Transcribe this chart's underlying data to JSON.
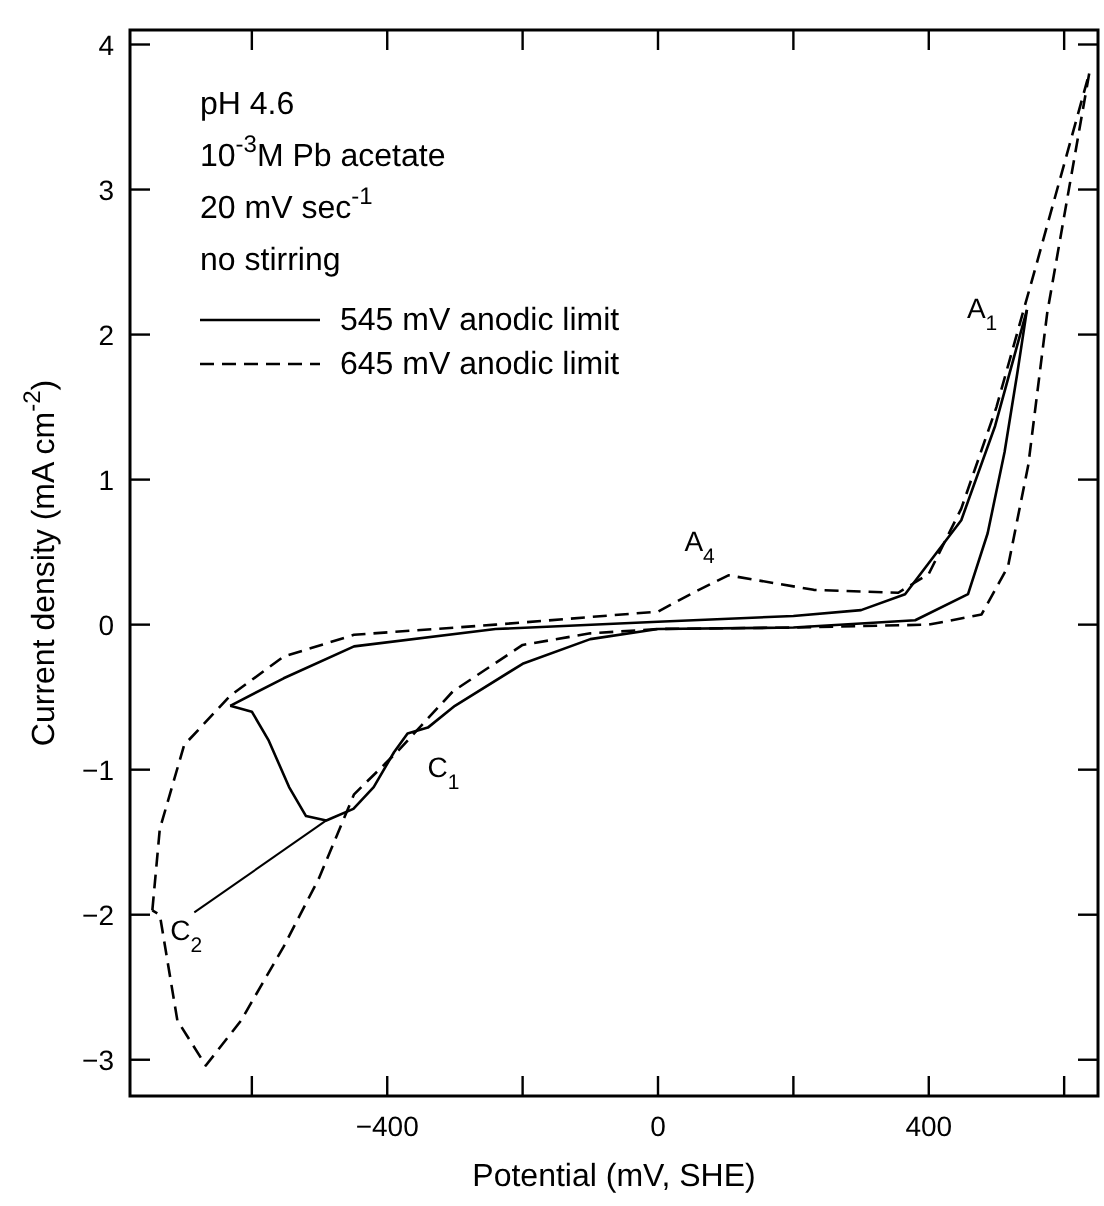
{
  "chart_data": {
    "type": "line",
    "xlabel": "Potential (mV, SHE)",
    "ylabel": "Current density (mA cm$^{-2}$)",
    "xlim": [
      -780,
      650
    ],
    "ylim": [
      -3.25,
      4.1
    ],
    "xticks": [
      {
        "value": -600,
        "label": null
      },
      -400,
      {
        "value": -200,
        "label": null
      },
      0,
      {
        "value": 200,
        "label": null
      },
      400,
      {
        "value": 600,
        "label": null
      }
    ],
    "yticks": [
      -3,
      -2,
      -1,
      0,
      1,
      2,
      3,
      4
    ],
    "grid": false,
    "legend": "top left",
    "marker": "none",
    "annotations": [
      "pH 4.6",
      "10$^{-3}$M Pb acetate",
      "20 mV sec$^{-1}$",
      "no stirring",
      {
        "text": "A$_{1}$",
        "x": 545,
        "y": 2.17
      },
      {
        "text": "A$_{4}$",
        "x": 104,
        "y": 0.34
      },
      {
        "text": "C$_{1}$",
        "x": -370,
        "y": -0.75
      },
      {
        "text": "C$_{2}$",
        "x": -490,
        "y": -1.35
      }
    ],
    "series": [
      {
        "name": "545 mV anodic limit",
        "color": "#000000",
        "line_style": "solid",
        "x": [
          -632,
          -553,
          -449,
          -240,
          0,
          200,
          300,
          365,
          448,
          498,
          545
        ],
        "values": [
          -0.56,
          -0.37,
          -0.15,
          -0.03,
          0.02,
          0.06,
          0.1,
          0.21,
          0.72,
          1.37,
          2.17
        ]
      },
      {
        "name": "645 mV anodic limit",
        "color": "#000000",
        "line_style": "dashed",
        "x": [
          -747,
          -736,
          -700,
          -632,
          -553,
          -449,
          -240,
          0,
          52,
          104,
          230,
          355,
          400,
          448,
          500,
          560,
          637
        ],
        "values": [
          -1.97,
          -1.41,
          -0.83,
          -0.49,
          -0.22,
          -0.07,
          0.0,
          0.09,
          0.22,
          0.34,
          0.24,
          0.22,
          0.35,
          0.8,
          1.5,
          2.5,
          3.8
        ]
      },
      {
        "color": "#000000",
        "line_style": "solid",
        "x": [
          545,
          531,
          512,
          487,
          458,
          380,
          200,
          0,
          -100,
          -200,
          -300,
          -340,
          -370,
          -390,
          -420,
          -450,
          -490,
          -520,
          -545,
          -575,
          -600,
          -632
        ],
        "values": [
          2.17,
          1.74,
          1.19,
          0.63,
          0.21,
          0.03,
          -0.02,
          -0.03,
          -0.1,
          -0.27,
          -0.56,
          -0.71,
          -0.75,
          -0.88,
          -1.12,
          -1.27,
          -1.35,
          -1.32,
          -1.12,
          -0.8,
          -0.6,
          -0.56
        ]
      },
      {
        "color": "#000000",
        "line_style": "dashed",
        "x": [
          637,
          575,
          547,
          517,
          478,
          400,
          200,
          0,
          -100,
          -200,
          -303,
          -386,
          -449,
          -501,
          -553,
          -616,
          -668,
          -710,
          -736,
          -747
        ],
        "values": [
          3.8,
          2.15,
          1.1,
          0.4,
          0.07,
          0.0,
          -0.02,
          -0.03,
          -0.06,
          -0.14,
          -0.46,
          -0.88,
          -1.17,
          -1.75,
          -2.22,
          -2.73,
          -3.04,
          -2.73,
          -2.0,
          -1.97
        ]
      }
    ]
  }
}
